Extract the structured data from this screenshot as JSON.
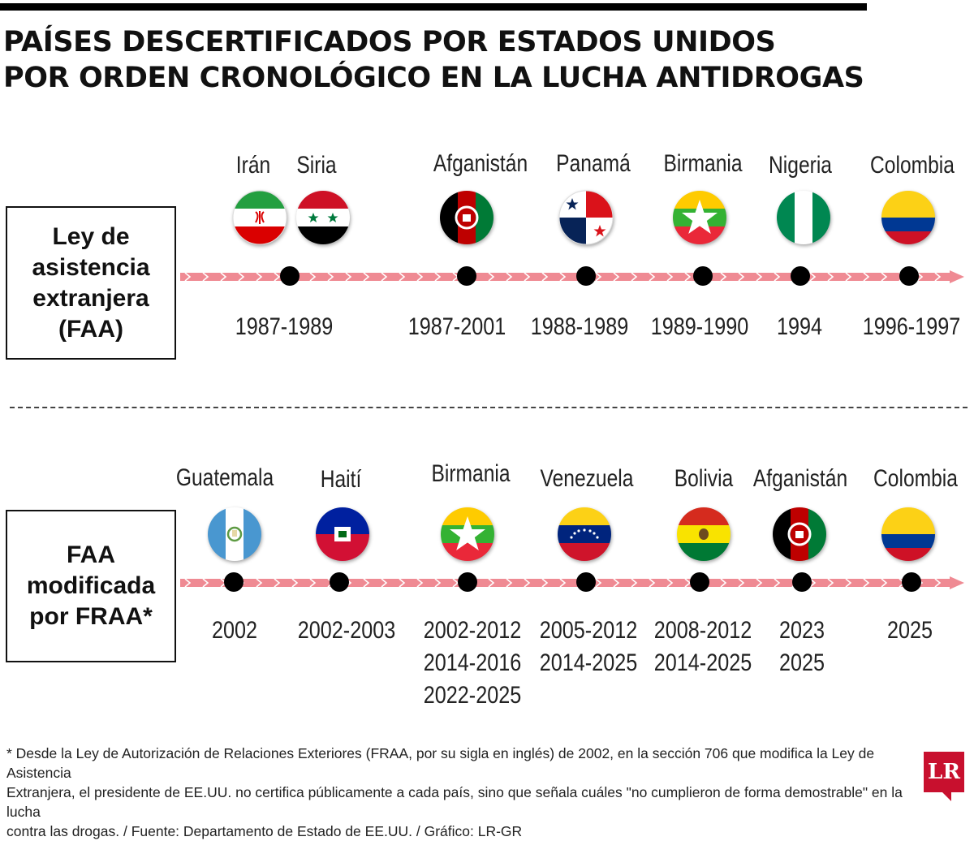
{
  "title_lines": [
    "PAÍSES DESCERTIFICADOS POR ESTADOS UNIDOS",
    "POR ORDEN CRONOLÓGICO EN LA LUCHA ANTIDROGAS"
  ],
  "sections": [
    {
      "category_lines": [
        "Ley de",
        "asistencia",
        "extranjera",
        "(FAA)"
      ],
      "items": [
        {
          "country": "Irán",
          "flag": "iran-flag-icon",
          "years": []
        },
        {
          "country": "Siria",
          "flag": "syria-flag-icon",
          "years": []
        },
        {
          "country": "Afganistán",
          "flag": "afghanistan-flag-icon",
          "years": [
            "1987-2001"
          ]
        },
        {
          "country": "Panamá",
          "flag": "panama-flag-icon",
          "years": [
            "1988-1989"
          ]
        },
        {
          "country": "Birmania",
          "flag": "myanmar-flag-icon",
          "years": [
            "1989-1990"
          ]
        },
        {
          "country": "Nigeria",
          "flag": "nigeria-flag-icon",
          "years": [
            "1994"
          ]
        },
        {
          "country": "Colombia",
          "flag": "colombia-flag-icon",
          "years": [
            "1996-1997"
          ]
        }
      ],
      "shared_years": [
        "1987-1989"
      ]
    },
    {
      "category_lines": [
        "FAA",
        "modificada",
        "por FRAA*"
      ],
      "items": [
        {
          "country": "Guatemala",
          "flag": "guatemala-flag-icon",
          "years": [
            "2002"
          ]
        },
        {
          "country": "Haití",
          "flag": "haiti-flag-icon",
          "years": [
            "2002-2003"
          ]
        },
        {
          "country": "Birmania",
          "flag": "myanmar-flag-icon",
          "years": [
            "2002-2012",
            "2014-2016",
            "2022-2025"
          ]
        },
        {
          "country": "Venezuela",
          "flag": "venezuela-flag-icon",
          "years": [
            "2005-2012",
            "2014-2025"
          ]
        },
        {
          "country": "Bolivia",
          "flag": "bolivia-flag-icon",
          "years": [
            "2008-2012",
            "2014-2025"
          ]
        },
        {
          "country": "Afganistán",
          "flag": "afghanistan-flag-icon",
          "years": [
            "2023",
            "2025"
          ]
        },
        {
          "country": "Colombia",
          "flag": "colombia-flag-icon",
          "years": [
            "2025"
          ]
        }
      ]
    }
  ],
  "footnote_lines": [
    "* Desde la Ley de Autorización de Relaciones Exteriores (FRAA, por su sigla en inglés) de 2002, en la sección 706 que modifica la Ley de Asistencia",
    "Extranjera, el presidente de EE.UU. no certifica públicamente a cada país, sino que señala cuáles \"no cumplieron de forma demostrable\" en la lucha",
    "contra las drogas. / Fuente: Departamento de Estado de EE.UU. / Gráfico: LR-GR"
  ],
  "logo_text": "LR",
  "colors": {
    "timeline": "#ef8a93",
    "dot": "#000000",
    "text": "#222222"
  }
}
